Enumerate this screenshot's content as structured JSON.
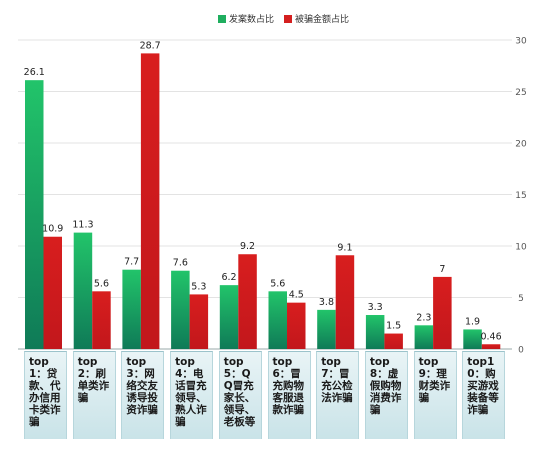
{
  "chart_data": {
    "type": "bar",
    "title": "",
    "xlabel": "",
    "ylabel": "",
    "ylim": [
      0,
      30
    ],
    "yticks": [
      0,
      5,
      10,
      15,
      20,
      25,
      30
    ],
    "categories": [
      "top1：贷款、代办信用卡类诈骗",
      "top2：刷单类诈骗",
      "top3：网络交友诱导投资诈骗",
      "top4：电话冒充领导、熟人诈骗",
      "top5：QQ冒充家长、领导、老板等",
      "top6：冒充购物客服退款诈骗",
      "top7：冒充公检法诈骗",
      "top8：虚假购物消费诈骗",
      "top9：理财类诈骗",
      "top10：购买游戏装备等诈骗"
    ],
    "series": [
      {
        "name": "发案数占比",
        "color": "#1fae5f",
        "values": [
          26.1,
          11.3,
          7.7,
          7.6,
          6.2,
          5.6,
          3.8,
          3.3,
          2.3,
          1.9
        ],
        "labels": [
          "26.1",
          "11.3",
          "7.7",
          "7.6",
          "6.2",
          "5.6",
          "3.8",
          "3.3",
          "2.3",
          "1.9"
        ]
      },
      {
        "name": "被骗金额占比",
        "color": "#d41f1f",
        "values": [
          10.9,
          5.6,
          28.7,
          5.3,
          9.2,
          4.5,
          9.1,
          1.5,
          7,
          0.46
        ],
        "labels": [
          "10.9",
          "5.6",
          "28.7",
          "5.3",
          "9.2",
          "4.5",
          "9.1",
          "1.5",
          "7",
          "0.46"
        ]
      }
    ],
    "legend_position": "top-center",
    "grid": true
  }
}
